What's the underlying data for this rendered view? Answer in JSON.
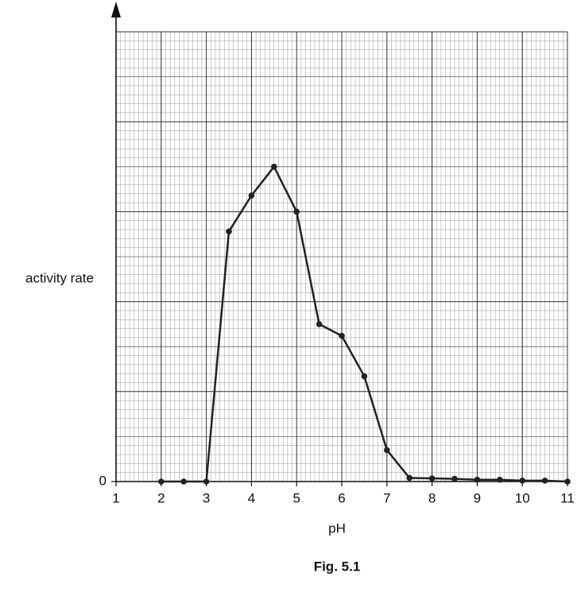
{
  "chart_data": {
    "type": "line",
    "title": "Fig. 5.1",
    "xlabel": "pH",
    "ylabel": "activity rate",
    "x": [
      2,
      2.5,
      3,
      3.5,
      4,
      4.5,
      5,
      5.5,
      6,
      6.5,
      7,
      7.5,
      8,
      8.5,
      9,
      9.5,
      10,
      10.5,
      11
    ],
    "values": [
      0,
      0,
      0,
      2.78,
      3.18,
      3.5,
      3.0,
      1.75,
      1.62,
      1.17,
      0.35,
      0.04,
      0.035,
      0.03,
      0.02,
      0.02,
      0.01,
      0.01,
      0
    ],
    "color": "#222222",
    "xlim": [
      1,
      11
    ],
    "xticks": [
      1,
      2,
      3,
      4,
      5,
      6,
      7,
      8,
      9,
      10,
      11
    ],
    "ylim": [
      0,
      5
    ],
    "yticks": [
      0
    ],
    "grid": true
  }
}
